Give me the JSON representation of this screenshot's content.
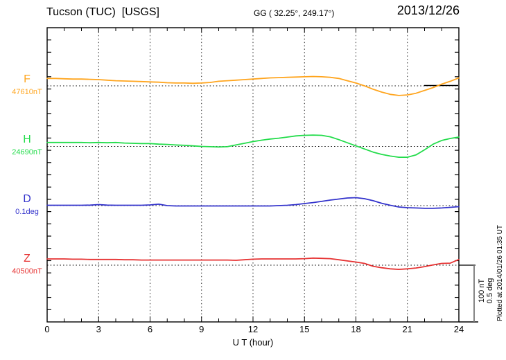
{
  "header": {
    "title": "Tucson (TUC)  [USGS]",
    "coords": "GG ( 32.25°, 249.17°)",
    "date": "2013/12/26"
  },
  "xaxis": {
    "label": "U T (hour)",
    "ticks": [
      0,
      3,
      6,
      9,
      12,
      15,
      18,
      21,
      24
    ]
  },
  "scale_bar": {
    "nt_label": "100 nT",
    "deg_label": "0.5 deg"
  },
  "footer_note": "Plotted at 2014/01/26 01:35 UT",
  "chart_data": {
    "type": "line",
    "title": "Tucson (TUC) [USGS] magnetogram",
    "subtitle": "GG ( 32.25°, 249.17°)",
    "date": "2013/12/26",
    "xlabel": "U T (hour)",
    "x_ticks": [
      0,
      3,
      6,
      9,
      12,
      15,
      18,
      21,
      24
    ],
    "x_start_hour": 0,
    "x_end_hour": 24,
    "x_step_hours": 0.5,
    "grid": "dotted vertical every 3 hours, dotted horizontal baseline per trace",
    "scale_bar": {
      "nT": 100,
      "deg": 0.5
    },
    "series": [
      {
        "name": "F",
        "baseline_label": "47610nT",
        "baseline_value": 47610,
        "units": "nT",
        "color": "#FFA51E",
        "delta": [
          13,
          13,
          12.5,
          12,
          12,
          11.5,
          11,
          10,
          9,
          8.5,
          8,
          7.5,
          7,
          6.5,
          5.5,
          5,
          5,
          4.5,
          5,
          6,
          8,
          9,
          10,
          11,
          12,
          13,
          14,
          14.5,
          15,
          15.5,
          16,
          16.5,
          16,
          15,
          13,
          9,
          5,
          0,
          -6,
          -11,
          -15,
          -17,
          -16,
          -13,
          -8,
          -3,
          3,
          8,
          14
        ]
      },
      {
        "name": "H",
        "baseline_label": "24690nT",
        "baseline_value": 24690,
        "units": "nT",
        "color": "#23DC4B",
        "delta": [
          7,
          7,
          7,
          7,
          7,
          6.5,
          7,
          6.5,
          7,
          6,
          5.5,
          5,
          5,
          4,
          3.5,
          2.5,
          2,
          1,
          0,
          -0.5,
          -1,
          -0.5,
          2.5,
          5.5,
          8.5,
          11,
          13,
          14.5,
          16.5,
          18.5,
          19.5,
          20,
          19.5,
          17,
          12,
          6.5,
          1,
          -4.5,
          -10,
          -14,
          -17,
          -19,
          -19,
          -15,
          -6,
          4,
          10.5,
          14,
          16.5
        ]
      },
      {
        "name": "D",
        "baseline_label": "0.1deg",
        "baseline_value": 0.1,
        "units": "deg",
        "color": "#3333CC",
        "delta": [
          0.003,
          0.003,
          0.003,
          0.003,
          0.003,
          0.004,
          0.009,
          0.004,
          0.003,
          0.003,
          0.003,
          0.003,
          0.006,
          0.013,
          0,
          -0.003,
          -0.003,
          -0.003,
          -0.003,
          -0.003,
          -0.003,
          -0.003,
          -0.003,
          -0.003,
          -0.003,
          -0.003,
          -0.003,
          0,
          0.003,
          0.009,
          0.018,
          0.027,
          0.037,
          0.049,
          0.058,
          0.067,
          0.07,
          0.061,
          0.043,
          0.021,
          0.003,
          -0.012,
          -0.018,
          -0.021,
          -0.024,
          -0.024,
          -0.021,
          -0.015,
          -0.009
        ]
      },
      {
        "name": "Z",
        "baseline_label": "40500nT",
        "baseline_value": 40500,
        "units": "nT",
        "color": "#E63232",
        "delta": [
          11,
          11,
          11,
          10.5,
          10.5,
          10,
          10,
          10,
          10,
          9.5,
          9.5,
          9,
          9,
          9,
          9,
          9,
          9,
          9,
          9,
          9,
          9,
          9,
          8.5,
          9.5,
          10.5,
          11,
          11,
          11,
          11,
          11,
          11.5,
          12.5,
          12,
          11.5,
          9.5,
          7.5,
          5.5,
          3,
          -2,
          -4.5,
          -6.5,
          -7.5,
          -6.5,
          -5,
          -2.5,
          0.5,
          3,
          3.5,
          10
        ]
      }
    ]
  }
}
